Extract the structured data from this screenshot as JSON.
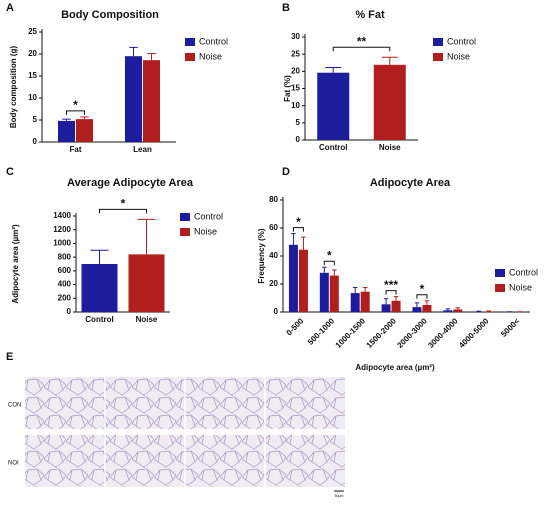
{
  "chart_data": [
    {
      "type": "bar",
      "panel": "A",
      "title": "Body Composition",
      "ylabel": "Body composition (g)",
      "categories": [
        "Fat",
        "Lean"
      ],
      "series": [
        {
          "name": "Control",
          "color": "#1c1c9c",
          "values": [
            4.8,
            19.5
          ],
          "errors": [
            0.4,
            2.0
          ]
        },
        {
          "name": "Noise",
          "color": "#b01e1e",
          "values": [
            5.2,
            18.6
          ],
          "errors": [
            0.5,
            1.5
          ]
        }
      ],
      "ylim": [
        0,
        25
      ],
      "yticks": [
        0,
        5,
        10,
        15,
        20,
        25
      ],
      "annotations": [
        {
          "text": "*",
          "category": "Fat"
        }
      ]
    },
    {
      "type": "bar",
      "panel": "B",
      "title": "% Fat",
      "ylabel": "Fat (%)",
      "categories": [
        "Control",
        "Noise"
      ],
      "values": [
        19.6,
        21.9
      ],
      "errors": [
        1.5,
        2.2
      ],
      "colors": [
        "#1c1c9c",
        "#b01e1e"
      ],
      "ylim": [
        0,
        30
      ],
      "yticks": [
        0,
        5,
        10,
        15,
        20,
        25,
        30
      ],
      "annotations": [
        {
          "text": "**"
        }
      ]
    },
    {
      "type": "bar",
      "panel": "C",
      "title": "Average Adipocyte Area",
      "ylabel": "Adipocyte area (µm²)",
      "categories": [
        "Control",
        "Noise"
      ],
      "values": [
        700,
        840
      ],
      "errors": [
        200,
        510
      ],
      "colors": [
        "#1c1c9c",
        "#b01e1e"
      ],
      "ylim": [
        0,
        1400
      ],
      "yticks": [
        0,
        200,
        400,
        600,
        800,
        1000,
        1200,
        1400
      ],
      "annotations": [
        {
          "text": "*"
        }
      ]
    },
    {
      "type": "bar",
      "panel": "D",
      "title": "Adipocyte Area",
      "ylabel": "Frequency (%)",
      "xlabel": "Adipocyte area (µm²)",
      "categories": [
        "0-500",
        "500-1000",
        "1000-1500",
        "1500-2000",
        "2000-3000",
        "3000-4000",
        "4000-5000",
        "5000<"
      ],
      "series": [
        {
          "name": "Control",
          "color": "#1c1c9c",
          "values": [
            48,
            28,
            13.5,
            5.5,
            3.5,
            1.2,
            0.3,
            0.1
          ],
          "errors": [
            8,
            4,
            4,
            4,
            3,
            1,
            0.3,
            0.1
          ]
        },
        {
          "name": "Noise",
          "color": "#b01e1e",
          "values": [
            44.5,
            26,
            14.5,
            8,
            5,
            1.8,
            0.4,
            0.1
          ],
          "errors": [
            9,
            4,
            3,
            3,
            3,
            1.2,
            0.3,
            0.1
          ]
        }
      ],
      "ylim": [
        0,
        80
      ],
      "yticks": [
        0,
        20,
        40,
        60,
        80
      ],
      "annotations": [
        {
          "text": "*",
          "category": "0-500"
        },
        {
          "text": "*",
          "category": "500-1000"
        },
        {
          "text": "***",
          "category": "1500-2000"
        },
        {
          "text": "*",
          "category": "2000-3000"
        }
      ]
    }
  ],
  "histology": {
    "panel": "E",
    "rows": [
      "CON",
      "NOI"
    ],
    "scale": "50μm"
  }
}
